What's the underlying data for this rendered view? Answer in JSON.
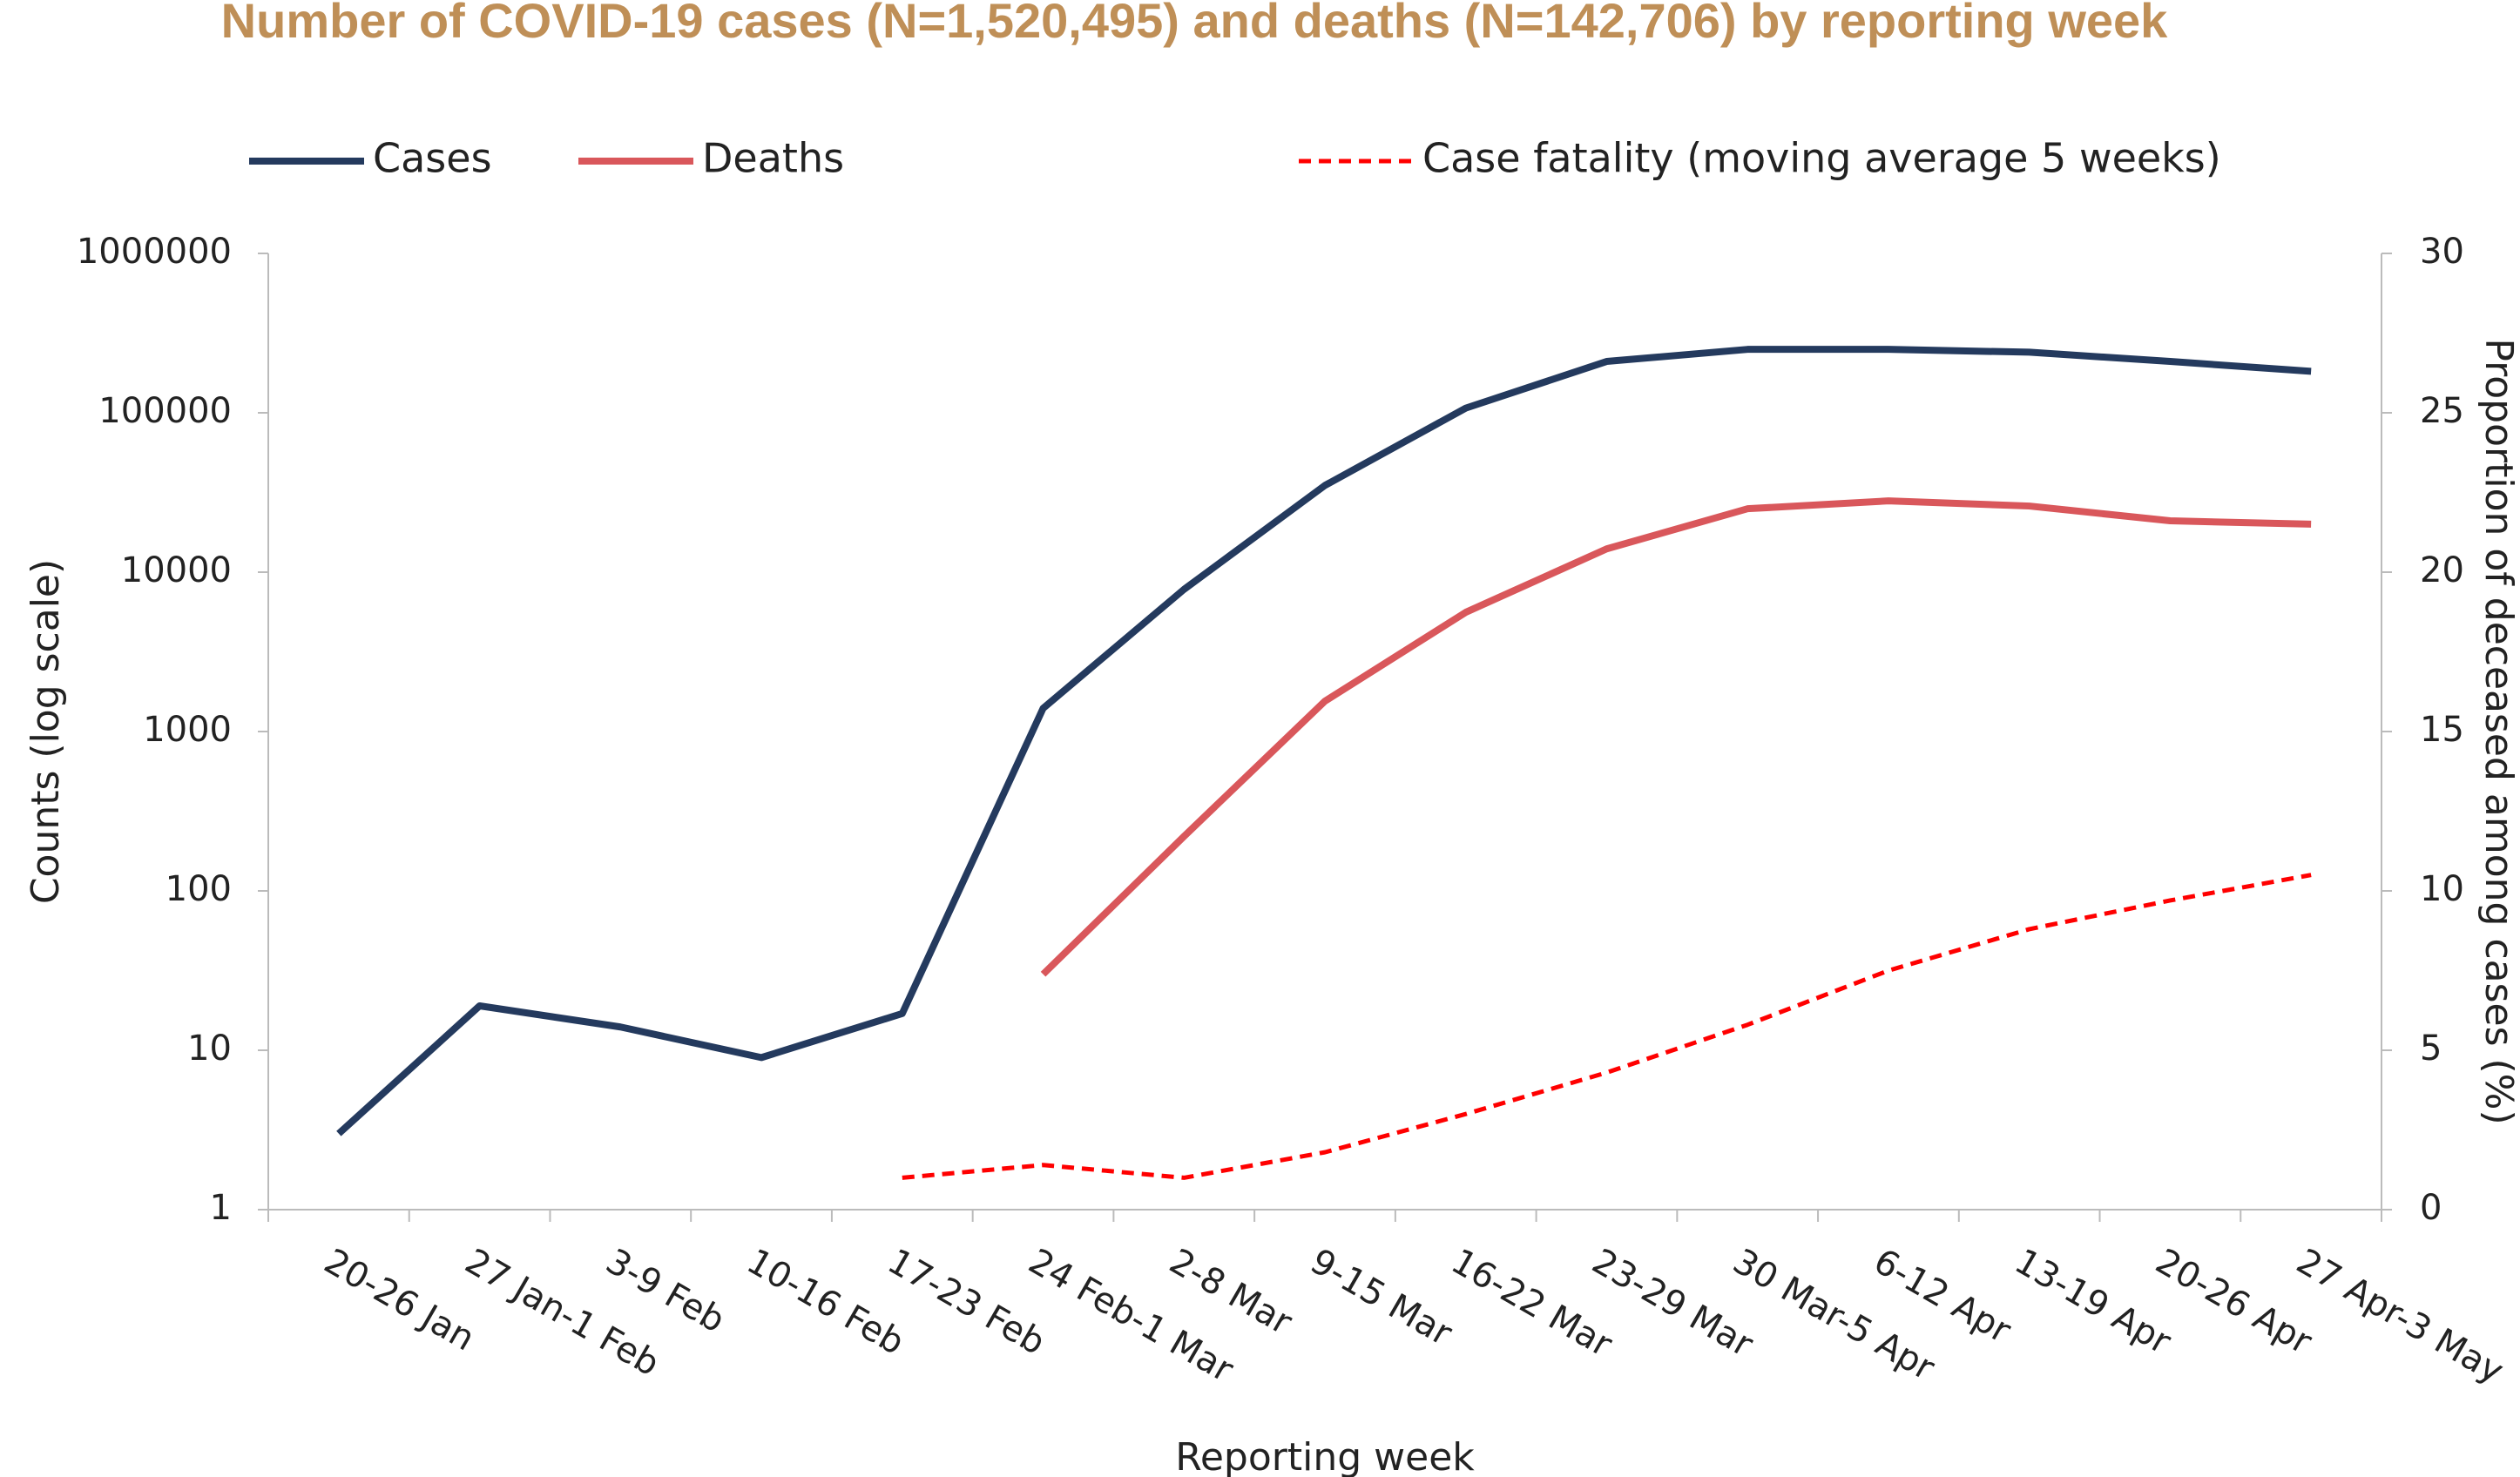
{
  "chart_data": {
    "type": "line",
    "title": "Number of COVID-19 cases (N=1,520,495) and deaths (N=142,706) by reporting week",
    "x_label": "Reporting week",
    "y_label": "Counts (log scale)",
    "y2_label": "Proportion of deceased among cases (%)",
    "categories": [
      "20-26 Jan",
      "27 Jan-1 Feb",
      "3-9 Feb",
      "10-16 Feb",
      "17-23 Feb",
      "24 Feb-1 Mar",
      "2-8 Mar",
      "9-15 Mar",
      "16-22 Mar",
      "23-29 Mar",
      "30 Mar-5 Apr",
      "6-12 Apr",
      "13-19 Apr",
      "20-26 Apr",
      "27 Apr-3 May"
    ],
    "ylog": true,
    "ylim": [
      1,
      1000000
    ],
    "yticks": [
      1,
      10,
      100,
      1000,
      10000,
      100000,
      1000000
    ],
    "y2lim": [
      0,
      30
    ],
    "y2ticks": [
      0,
      5,
      10,
      15,
      20,
      25,
      30
    ],
    "series": [
      {
        "name": "Cases",
        "color": "#243a5e",
        "dashed": false,
        "values": [
          3,
          19,
          14,
          9,
          17,
          1400,
          7800,
          35000,
          107000,
          210000,
          250000,
          250000,
          240000,
          210000,
          182000
        ]
      },
      {
        "name": "Deaths",
        "color": "#d9575b",
        "dashed": false,
        "values": [
          null,
          null,
          null,
          null,
          null,
          30,
          220,
          1550,
          5600,
          14000,
          25000,
          28000,
          26000,
          21000,
          20000
        ]
      },
      {
        "name": "Case fatality (moving average 5 weeks)",
        "color": "#ff0000",
        "dashed": true,
        "axis": "y2",
        "values": [
          null,
          null,
          null,
          null,
          1.0,
          1.4,
          1.0,
          1.8,
          3.0,
          4.3,
          5.8,
          7.5,
          8.8,
          9.7,
          10.5
        ]
      }
    ]
  }
}
